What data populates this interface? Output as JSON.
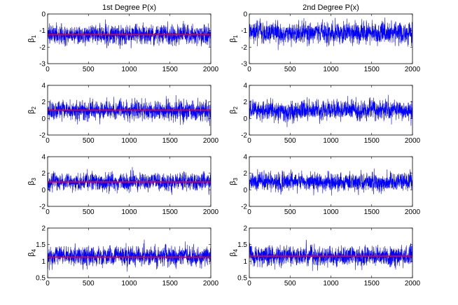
{
  "colors": {
    "trace": "#0000ff",
    "mean": "#ff0000",
    "axes": "#000000"
  },
  "chart_data": [
    {
      "type": "line",
      "title": "1st Degree P(x)",
      "ylabel": "β",
      "ylabel_sub": "1",
      "xlim": [
        0,
        2000
      ],
      "ylim": [
        -3,
        0
      ],
      "xticks": [
        "0",
        "500",
        "1000",
        "1500",
        "2000"
      ],
      "yticks": [
        "-3",
        "-2",
        "-1",
        "0"
      ],
      "grid": false,
      "series": [
        {
          "kind": "trace",
          "n_samples": 2000,
          "mean": -1.25,
          "sd": 0.28
        },
        {
          "kind": "mean",
          "x": [
            0,
            2000
          ],
          "y": [
            -1.25,
            -1.25
          ]
        }
      ]
    },
    {
      "type": "line",
      "title": "2nd Degree P(x)",
      "ylabel": "β",
      "ylabel_sub": "1",
      "xlim": [
        0,
        2000
      ],
      "ylim": [
        -3,
        0
      ],
      "xticks": [
        "0",
        "500",
        "1000",
        "1500",
        "2000"
      ],
      "yticks": [
        "-3",
        "-2",
        "-1",
        "0"
      ],
      "grid": false,
      "series": [
        {
          "kind": "trace",
          "n_samples": 2000,
          "mean": -1.15,
          "sd": 0.3
        }
      ]
    },
    {
      "type": "line",
      "title": "",
      "ylabel": "β",
      "ylabel_sub": "2",
      "xlim": [
        0,
        2000
      ],
      "ylim": [
        -2,
        4
      ],
      "xticks": [
        "0",
        "500",
        "1000",
        "1500",
        "2000"
      ],
      "yticks": [
        "-2",
        "0",
        "2",
        "4"
      ],
      "grid": false,
      "series": [
        {
          "kind": "trace",
          "n_samples": 2000,
          "mean": 0.95,
          "sd": 0.55
        },
        {
          "kind": "mean",
          "x": [
            0,
            2000
          ],
          "y": [
            1.0,
            1.0
          ]
        }
      ]
    },
    {
      "type": "line",
      "title": "",
      "ylabel": "β",
      "ylabel_sub": "2",
      "xlim": [
        0,
        2000
      ],
      "ylim": [
        -2,
        4
      ],
      "xticks": [
        "0",
        "500",
        "1000",
        "1500",
        "2000"
      ],
      "yticks": [
        "-2",
        "0",
        "2",
        "4"
      ],
      "grid": false,
      "series": [
        {
          "kind": "trace",
          "n_samples": 2000,
          "mean": 1.0,
          "sd": 0.55
        }
      ]
    },
    {
      "type": "line",
      "title": "",
      "ylabel": "β",
      "ylabel_sub": "3",
      "xlim": [
        0,
        2000
      ],
      "ylim": [
        -2,
        4
      ],
      "xticks": [
        "0",
        "500",
        "1000",
        "1500",
        "2000"
      ],
      "yticks": [
        "-2",
        "0",
        "2",
        "4"
      ],
      "grid": false,
      "series": [
        {
          "kind": "trace",
          "n_samples": 2000,
          "mean": 0.95,
          "sd": 0.5
        },
        {
          "kind": "mean",
          "x": [
            0,
            2000
          ],
          "y": [
            0.95,
            0.95
          ]
        }
      ]
    },
    {
      "type": "line",
      "title": "",
      "ylabel": "β",
      "ylabel_sub": "3",
      "xlim": [
        0,
        2000
      ],
      "ylim": [
        -2,
        4
      ],
      "xticks": [
        "0",
        "500",
        "1000",
        "1500",
        "2000"
      ],
      "yticks": [
        "-2",
        "0",
        "2",
        "4"
      ],
      "grid": false,
      "series": [
        {
          "kind": "trace",
          "n_samples": 2000,
          "mean": 0.95,
          "sd": 0.5
        }
      ]
    },
    {
      "type": "line",
      "title": "",
      "ylabel": "β",
      "ylabel_sub": "4",
      "xlim": [
        0,
        2000
      ],
      "ylim": [
        0.5,
        2
      ],
      "xticks": [
        "0",
        "500",
        "1000",
        "1500",
        "2000"
      ],
      "yticks": [
        "0.5",
        "1",
        "1.5",
        "2"
      ],
      "grid": false,
      "series": [
        {
          "kind": "trace",
          "n_samples": 2000,
          "mean": 1.15,
          "sd": 0.14
        },
        {
          "kind": "mean",
          "x": [
            0,
            2000
          ],
          "y": [
            1.12,
            1.12
          ]
        }
      ]
    },
    {
      "type": "line",
      "title": "",
      "ylabel": "β",
      "ylabel_sub": "4",
      "xlim": [
        0,
        2000
      ],
      "ylim": [
        0.5,
        2
      ],
      "xticks": [
        "0",
        "500",
        "1000",
        "1500",
        "2000"
      ],
      "yticks": [
        "0.5",
        "1",
        "1.5",
        "2"
      ],
      "grid": false,
      "series": [
        {
          "kind": "trace",
          "n_samples": 2000,
          "mean": 1.15,
          "sd": 0.14
        },
        {
          "kind": "mean",
          "x": [
            0,
            2000
          ],
          "y": [
            1.15,
            1.15
          ]
        }
      ]
    }
  ]
}
